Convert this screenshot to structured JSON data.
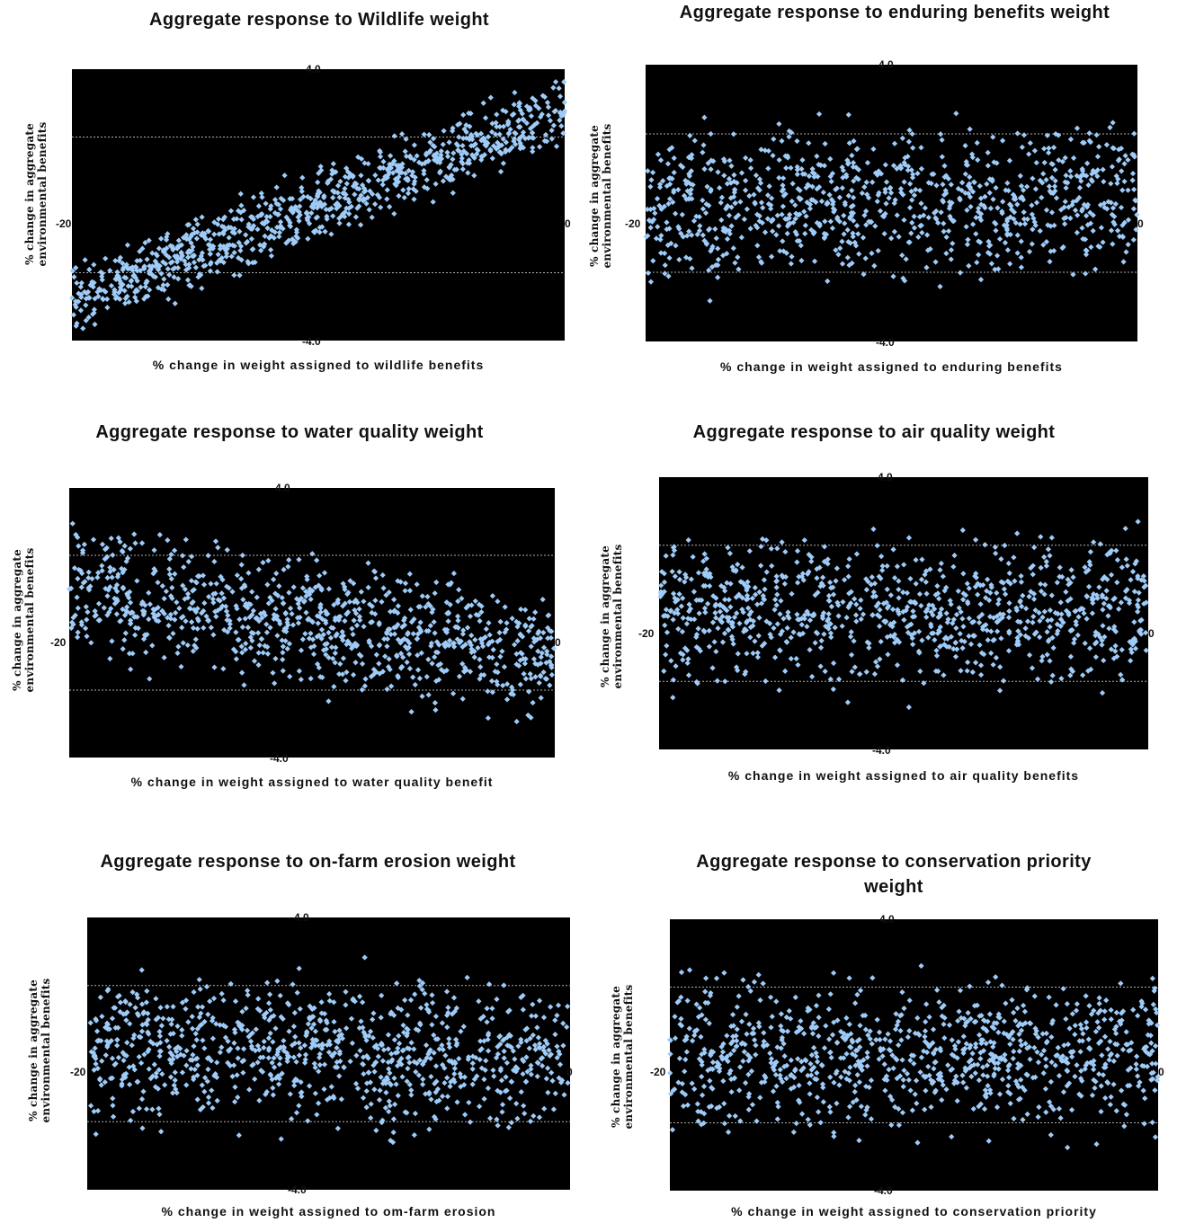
{
  "colors": {
    "background": "#ffffff",
    "plot_area": "#000000",
    "point": "#9ecbf7",
    "gridline": "#b0b0b0",
    "text": "#111111"
  },
  "chart_data": [
    {
      "type": "scatter",
      "title": "Aggregate response to Wildlife weight",
      "xlabel": "% change in weight assigned to wildlife benefits",
      "ylabel": "% change in aggregate environmental benefits",
      "xlim": [
        -20,
        20
      ],
      "ylim": [
        -4.0,
        4.0
      ],
      "tick_labels": {
        "y_top": "4.0",
        "y_bottom": "-4.0",
        "x_left": "-20",
        "x_right": "0"
      },
      "grid": true,
      "trend": "positive",
      "slope": 0.14,
      "spread": 0.6
    },
    {
      "type": "scatter",
      "title": "Aggregate response to enduring benefits weight",
      "xlabel": "% change in weight assigned to enduring benefits",
      "ylabel": "% change in aggregate environmental benefits",
      "xlim": [
        -20,
        20
      ],
      "ylim": [
        -4.0,
        4.0
      ],
      "tick_labels": {
        "y_top": "4.0",
        "y_bottom": "-4.0",
        "x_left": "-20",
        "x_right": "0"
      },
      "grid": true,
      "trend": "flat",
      "slope": 0.01,
      "spread": 1.25
    },
    {
      "type": "scatter",
      "title": "Aggregate response to water quality weight",
      "xlabel": "% change in weight assigned to water quality benefit",
      "ylabel": "% change in aggregate environmental benefits",
      "xlim": [
        -20,
        20
      ],
      "ylim": [
        -4.0,
        4.0
      ],
      "tick_labels": {
        "y_top": "4.0",
        "y_bottom": "-4.0",
        "x_left": "-20",
        "x_right": "0"
      },
      "grid": true,
      "trend": "slight negative",
      "slope": -0.05,
      "spread": 1.1
    },
    {
      "type": "scatter",
      "title": "Aggregate response to air quality weight",
      "xlabel": "% change in weight assigned to air quality benefits",
      "ylabel": "% change in aggregate environmental benefits",
      "xlim": [
        -20,
        20
      ],
      "ylim": [
        -4.0,
        4.0
      ],
      "tick_labels": {
        "y_top": "4.0",
        "y_bottom": "-4.0",
        "x_left": "-20",
        "x_right": "0"
      },
      "grid": true,
      "trend": "flat",
      "slope": 0.0,
      "spread": 1.2
    },
    {
      "type": "scatter",
      "title": "Aggregate response to on-farm erosion weight",
      "xlabel": "% change in weight assigned to om-farm erosion",
      "ylabel": "% change in aggregate environmental benefits",
      "xlim": [
        -20,
        20
      ],
      "ylim": [
        -4.0,
        4.0
      ],
      "tick_labels": {
        "y_top": "4.0",
        "y_bottom": "-4.0",
        "x_left": "-20",
        "x_right": "0"
      },
      "grid": true,
      "trend": "flat",
      "slope": -0.01,
      "spread": 1.25
    },
    {
      "type": "scatter",
      "title": "Aggregate response to conservation priority weight",
      "xlabel": "% change in weight assigned to conservation priority",
      "ylabel": "% change in aggregate environmental benefits",
      "xlim": [
        -20,
        20
      ],
      "ylim": [
        -4.0,
        4.0
      ],
      "tick_labels": {
        "y_top": "4.0",
        "y_bottom": "-4.0",
        "x_left": "-20",
        "x_right": "0"
      },
      "grid": true,
      "trend": "flat",
      "slope": 0.0,
      "spread": 1.25
    }
  ]
}
